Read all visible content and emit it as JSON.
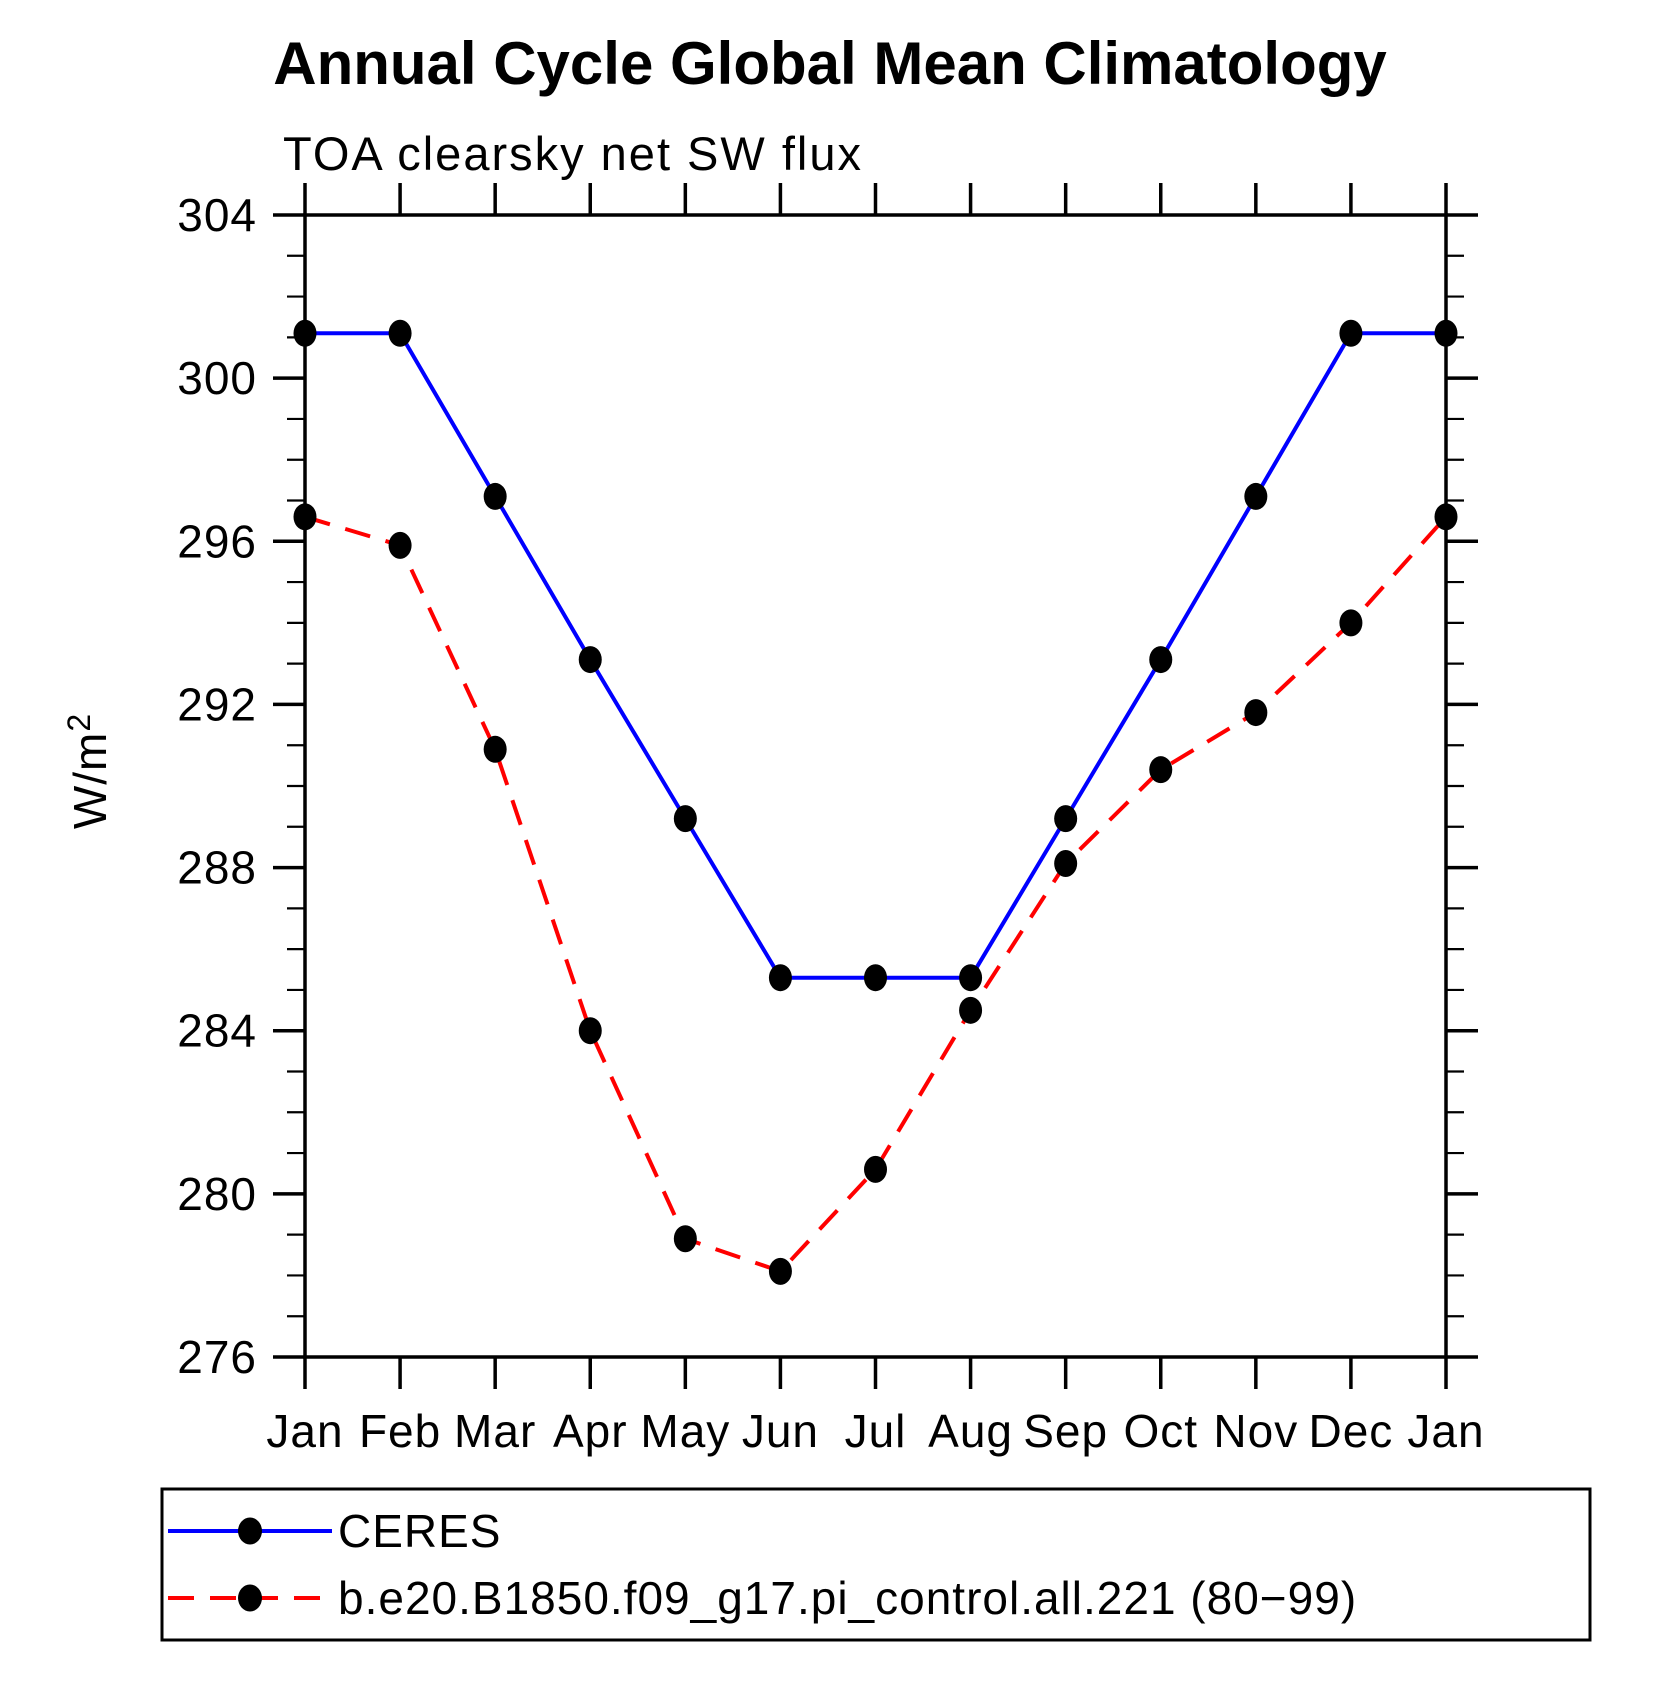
{
  "chart_data": {
    "type": "line",
    "title": "Annual Cycle Global Mean Climatology",
    "subtitle": "TOA clearsky net SW flux",
    "ylabel_base": "W/m",
    "ylabel_sup": "2",
    "xlabel": "",
    "categories": [
      "Jan",
      "Feb",
      "Mar",
      "Apr",
      "May",
      "Jun",
      "Jul",
      "Aug",
      "Sep",
      "Oct",
      "Nov",
      "Dec",
      "Jan"
    ],
    "y_major_ticks": [
      276,
      280,
      284,
      288,
      292,
      296,
      300,
      304
    ],
    "y_minor_step": 1,
    "ylim": [
      276,
      304
    ],
    "grid": "off",
    "legend_position": "bottom",
    "series": [
      {
        "name": "CERES",
        "line_color": "#0000ff",
        "line_style": "solid",
        "marker": "filled-circle",
        "marker_color": "#000000",
        "values": [
          301.1,
          301.1,
          297.1,
          293.1,
          289.2,
          285.3,
          285.3,
          285.3,
          289.2,
          293.1,
          297.1,
          301.1,
          301.1
        ]
      },
      {
        "name": "b.e20.B1850.f09_g17.pi_control.all.221 (80−99)",
        "line_color": "#ff0000",
        "line_style": "dashed",
        "marker": "filled-circle",
        "marker_color": "#000000",
        "values": [
          296.6,
          295.9,
          290.9,
          284.0,
          278.9,
          278.1,
          280.6,
          284.5,
          288.1,
          290.4,
          291.8,
          294.0,
          296.6
        ]
      }
    ]
  }
}
